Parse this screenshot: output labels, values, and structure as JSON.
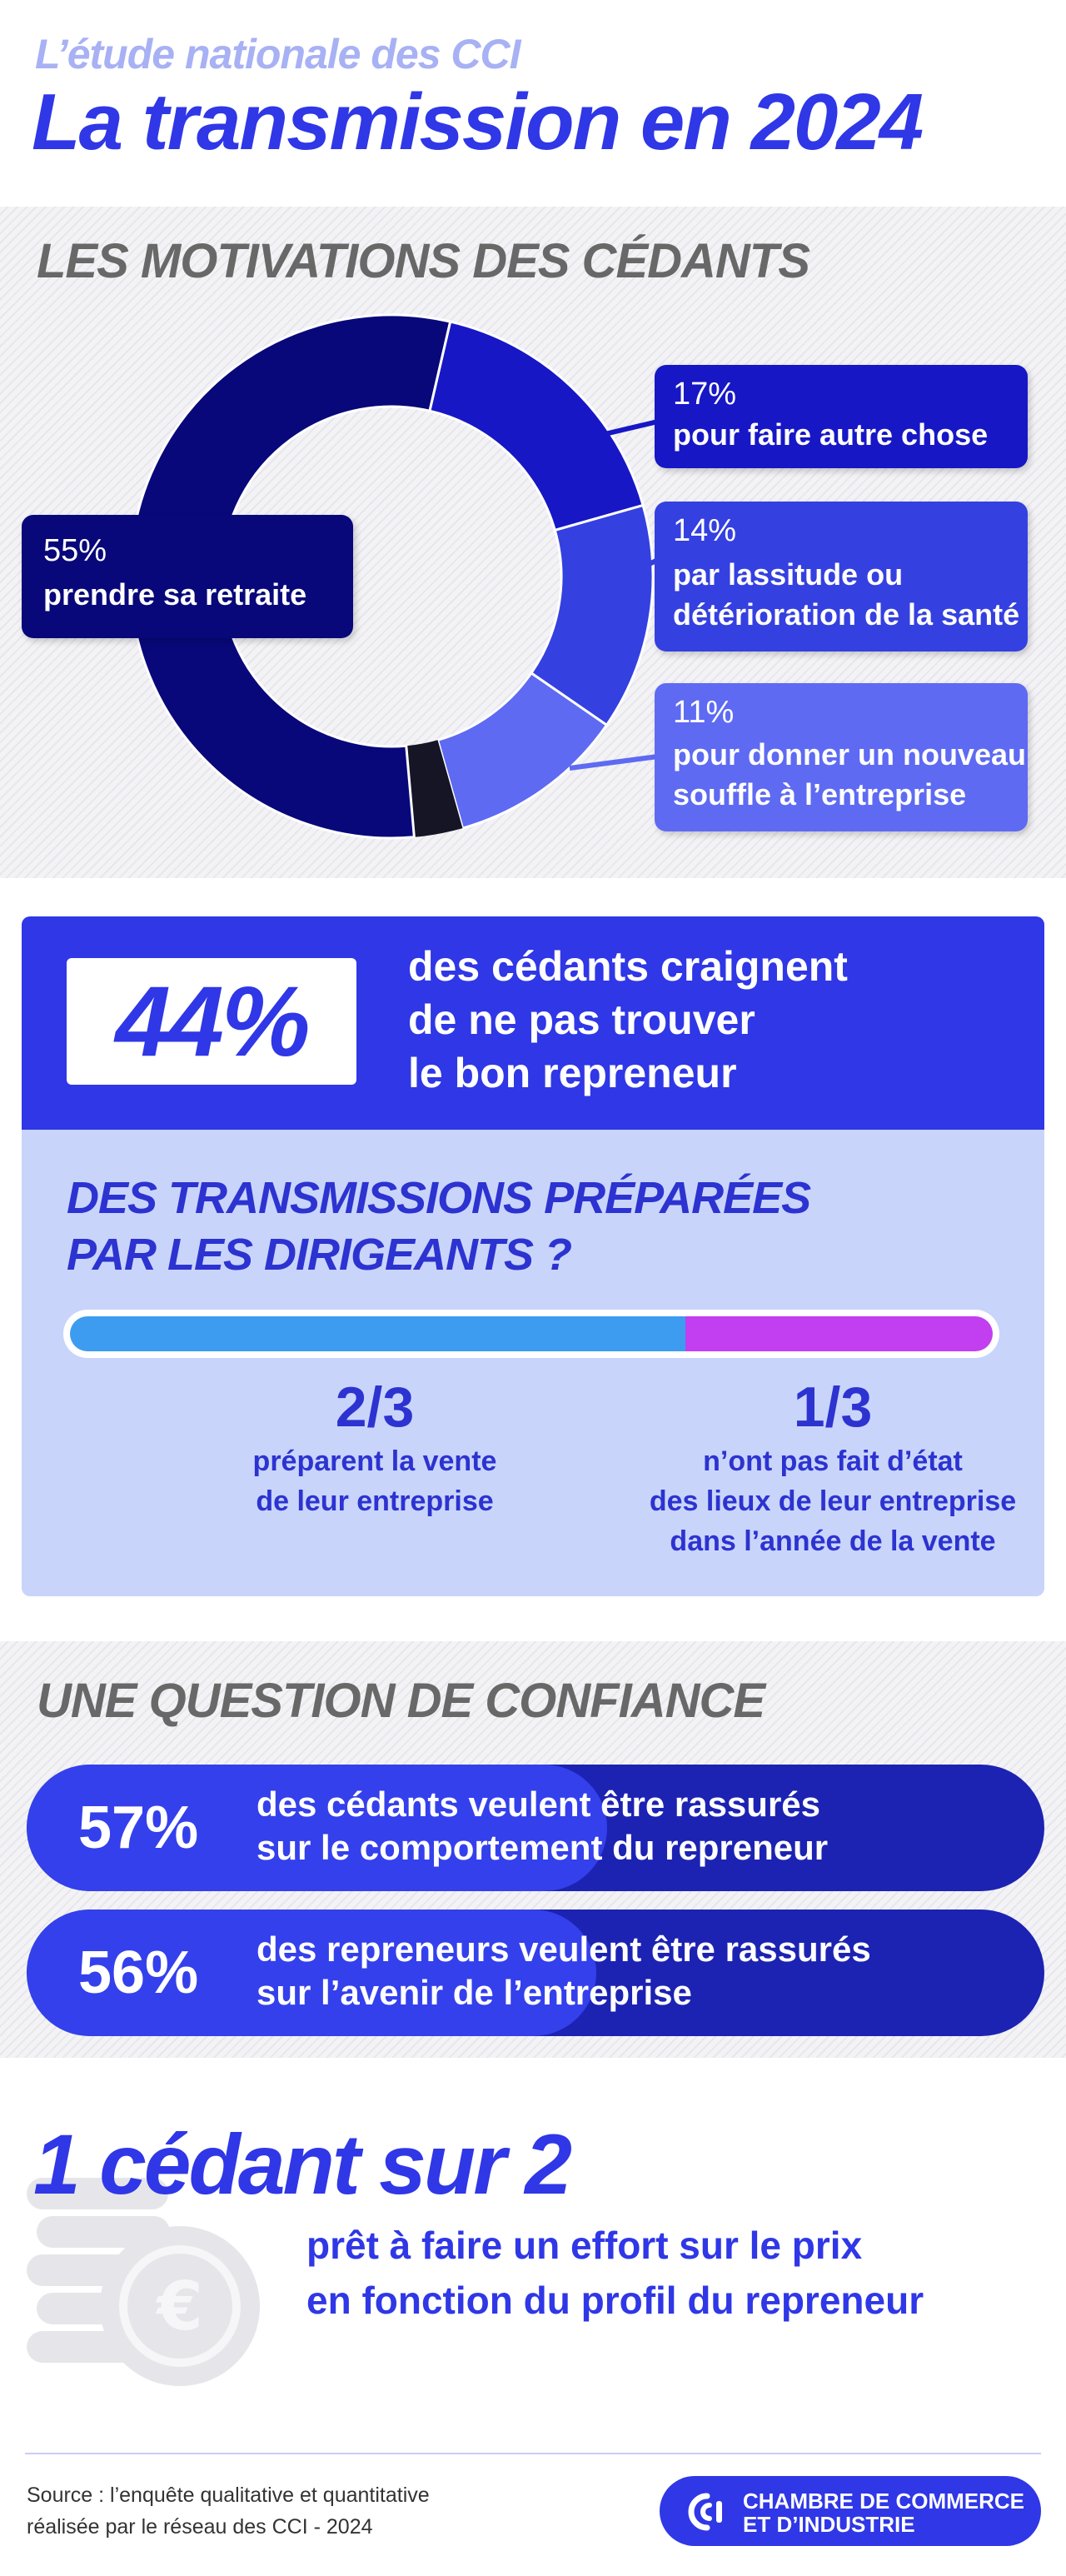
{
  "header": {
    "subtitle": "L’étude nationale des CCI",
    "title": "La transmission en 2024"
  },
  "motivations": {
    "title": "LES MOTIVATIONS DES CÉDANTS",
    "slices": [
      {
        "pct": "55%",
        "label": "prendre sa retraite",
        "value": 55,
        "color": "#08087a"
      },
      {
        "pct": "17%",
        "label": "pour faire autre chose",
        "value": 17,
        "color": "#1717c6"
      },
      {
        "pct": "14%",
        "label_line1": "par lassitude ou",
        "label_line2": "détérioration de la santé",
        "value": 14,
        "color": "#3540e0"
      },
      {
        "pct": "11%",
        "label_line1": "pour donner un nouveau",
        "label_line2": "souffle à l’entreprise",
        "value": 11,
        "color": "#5e6af2"
      }
    ]
  },
  "fear_stat": {
    "pct": "44%",
    "line1": "des cédants craignent",
    "line2": "de ne pas trouver",
    "line3": "le bon repreneur"
  },
  "prepared": {
    "title_line1": "DES TRANSMISSIONS PRÉPARÉES",
    "title_line2": "PAR LES DIRIGEANTS ?",
    "share_prepared": 0.6667,
    "left": {
      "fraction": "2/3",
      "line1": "préparent la vente",
      "line2": "de leur entreprise"
    },
    "right": {
      "fraction": "1/3",
      "line1": "n’ont pas fait d’état",
      "line2": "des lieux de leur entreprise",
      "line3": "dans l’année de la vente"
    }
  },
  "confidence": {
    "title": "UNE QUESTION DE CONFIANCE",
    "items": [
      {
        "pct": "57%",
        "value": 57,
        "line1": "des cédants veulent être rassurés",
        "line2": "sur le comportement du repreneur"
      },
      {
        "pct": "56%",
        "value": 56,
        "line1": "des repreneurs veulent être rassurés",
        "line2": "sur l’avenir de l’entreprise"
      }
    ]
  },
  "price": {
    "headline": "1 cédant sur 2",
    "line1": "prêt à faire un effort sur le prix",
    "line2": "en fonction du profil du repreneur"
  },
  "footer": {
    "source_line1": "Source : l’enquête qualitative et quantitative",
    "source_line2": "réalisée par le réseau des CCI - 2024",
    "logo_line1": "CHAMBRE DE COMMERCE",
    "logo_line2": "ET D’INDUSTRIE"
  },
  "colors": {
    "brand_blue": "#2f37e6",
    "dark_navy": "#08087a",
    "light_panel": "#c9d4fb",
    "bar_blue": "#3d9cf0",
    "bar_purple": "#c13ff0"
  },
  "icons": [
    "coins-euro-icon",
    "cci-logo-icon"
  ]
}
